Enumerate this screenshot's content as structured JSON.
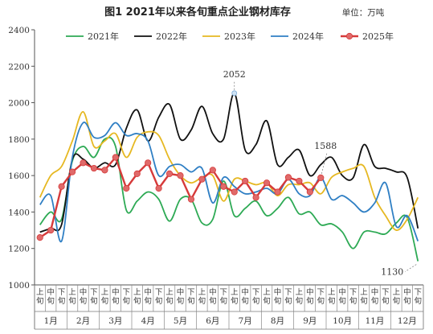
{
  "chart_data": {
    "type": "line",
    "title": "图1  2021年以来各旬重点企业钢材库存",
    "unit": "单位：万吨",
    "ylim": [
      1000,
      2400
    ],
    "yticks": [
      1000,
      1200,
      1400,
      1600,
      1800,
      2000,
      2200,
      2400
    ],
    "x_ticks": [
      "上旬",
      "中旬",
      "下旬",
      "上旬",
      "中旬",
      "下旬",
      "上旬",
      "中旬",
      "下旬",
      "上旬",
      "中旬",
      "下旬",
      "上旬",
      "中旬",
      "下旬",
      "上旬",
      "中旬",
      "下旬",
      "上旬",
      "中旬",
      "下旬",
      "上旬",
      "中旬",
      "下旬",
      "上旬",
      "中旬",
      "下旬",
      "上旬",
      "中旬",
      "下旬",
      "上旬",
      "中旬",
      "下旬",
      "上旬",
      "中旬",
      "下旬"
    ],
    "months": [
      "1月",
      "2月",
      "3月",
      "4月",
      "5月",
      "6月",
      "7月",
      "8月",
      "9月",
      "10月",
      "11月",
      "12月"
    ],
    "legend_position": "top",
    "series": [
      {
        "name": "2021年",
        "color": "#2eaa55",
        "marker": false,
        "values": [
          1330,
          1400,
          1360,
          1680,
          1760,
          1700,
          1800,
          1760,
          1410,
          1460,
          1510,
          1470,
          1350,
          1470,
          1470,
          1340,
          1360,
          1570,
          1380,
          1420,
          1460,
          1380,
          1420,
          1480,
          1390,
          1400,
          1330,
          1335,
          1290,
          1200,
          1290,
          1290,
          1280,
          1340,
          1370,
          1130
        ]
      },
      {
        "name": "2022年",
        "color": "#111111",
        "marker": false,
        "values": [
          1290,
          1310,
          1330,
          1690,
          1690,
          1640,
          1670,
          1660,
          1860,
          1960,
          1790,
          1920,
          1990,
          1800,
          1850,
          1980,
          1830,
          1800,
          2052,
          1740,
          1770,
          1900,
          1660,
          1700,
          1740,
          1600,
          1660,
          1700,
          1600,
          1588,
          1770,
          1650,
          1640,
          1620,
          1590,
          1310
        ]
      },
      {
        "name": "2023年",
        "color": "#e6b822",
        "marker": false,
        "values": [
          1480,
          1600,
          1650,
          1790,
          1950,
          1760,
          1790,
          1830,
          1700,
          1810,
          1840,
          1820,
          1690,
          1600,
          1560,
          1590,
          1600,
          1460,
          1580,
          1570,
          1550,
          1560,
          1490,
          1550,
          1550,
          1560,
          1500,
          1590,
          1620,
          1640,
          1650,
          1480,
          1380,
          1300,
          1360,
          1480
        ]
      },
      {
        "name": "2024年",
        "color": "#2f7fc4",
        "marker": false,
        "values": [
          1440,
          1490,
          1240,
          1700,
          1890,
          1810,
          1820,
          1890,
          1820,
          1830,
          1790,
          1600,
          1650,
          1660,
          1620,
          1640,
          1450,
          1590,
          1540,
          1500,
          1510,
          1530,
          1500,
          1580,
          1500,
          1490,
          1590,
          1470,
          1490,
          1450,
          1400,
          1450,
          1560,
          1320,
          1380,
          1240
        ]
      },
      {
        "name": "2025年",
        "color": "#d63a3a",
        "marker": true,
        "values": [
          1260,
          1300,
          1540,
          1620,
          1670,
          1640,
          1630,
          1700,
          1530,
          1610,
          1670,
          1530,
          1610,
          1600,
          1470,
          1580,
          1630,
          1540,
          1510,
          1570,
          1480,
          1560,
          1510,
          1590,
          1570,
          1510,
          1588
        ]
      }
    ],
    "annotations": [
      {
        "text": "2052",
        "series": "2022年",
        "index": 18
      },
      {
        "text": "1588",
        "series": "2025年",
        "index": 26
      },
      {
        "text": "1130",
        "series": "2021年",
        "index": 35
      }
    ]
  }
}
